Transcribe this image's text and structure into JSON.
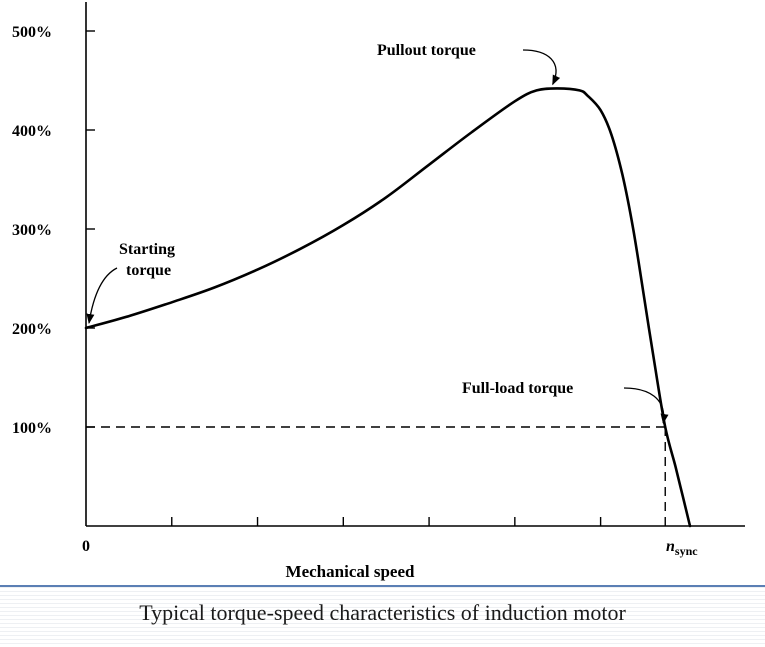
{
  "caption": "Typical torque-speed characteristics of induction motor",
  "chart_data": {
    "type": "line",
    "xlabel": "Mechanical speed",
    "ylabel": "",
    "xlim": [
      0,
      1.0
    ],
    "ylim": [
      0,
      500
    ],
    "x_tick_labels": [
      {
        "x": 0,
        "label": "0"
      },
      {
        "x": 1.0,
        "label": "n",
        "subscript": "sync"
      }
    ],
    "x_minor_ticks": [
      0.142,
      0.284,
      0.426,
      0.568,
      0.71,
      0.852
    ],
    "y_ticks": [
      100,
      200,
      300,
      400,
      500
    ],
    "y_tick_labels": [
      "100%",
      "200%",
      "300%",
      "400%",
      "500%"
    ],
    "series": [
      {
        "x": [
          0,
          0.071,
          0.142,
          0.213,
          0.284,
          0.355,
          0.426,
          0.497,
          0.568,
          0.639,
          0.71,
          0.746,
          0.781,
          0.817,
          0.83,
          0.852,
          0.87,
          0.888,
          0.906,
          0.923,
          0.941,
          0.959,
          0.976,
          0.988,
          1.0
        ],
        "values": [
          200,
          212,
          226,
          241,
          259,
          280,
          304,
          332,
          365,
          398,
          429,
          440,
          442,
          440,
          435,
          420,
          395,
          355,
          300,
          235,
          165,
          100,
          60,
          30,
          0
        ]
      }
    ],
    "full_load_line": {
      "y": 100,
      "x": 0.959
    },
    "annotations": [
      {
        "text": "Pullout torque",
        "x": 0.781,
        "y": 442
      },
      {
        "text": "Starting",
        "text2": "torque",
        "x": 0,
        "y": 200
      },
      {
        "text": "Full-load torque",
        "x": 0.959,
        "y": 100
      }
    ]
  }
}
